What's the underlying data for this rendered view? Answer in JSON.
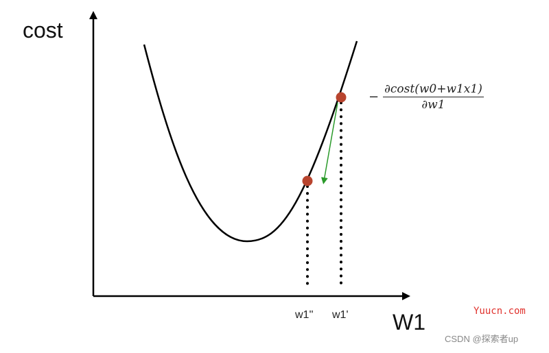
{
  "axes": {
    "y_label": "cost",
    "x_label": "W1"
  },
  "ticks": {
    "w1_updated": "w1''",
    "w1_current": "w1'"
  },
  "annotation": {
    "minus": "−",
    "numerator": "∂cost(w0+w1x1)",
    "denominator": "∂w1"
  },
  "watermarks": {
    "site": "Yuucn.com",
    "csdn": "CSDN @探索者up"
  },
  "colors": {
    "curve": "#000000",
    "points": "#b8442e",
    "gradient_arrow": "#2a9a2a",
    "site_watermark": "#e0322d"
  }
}
